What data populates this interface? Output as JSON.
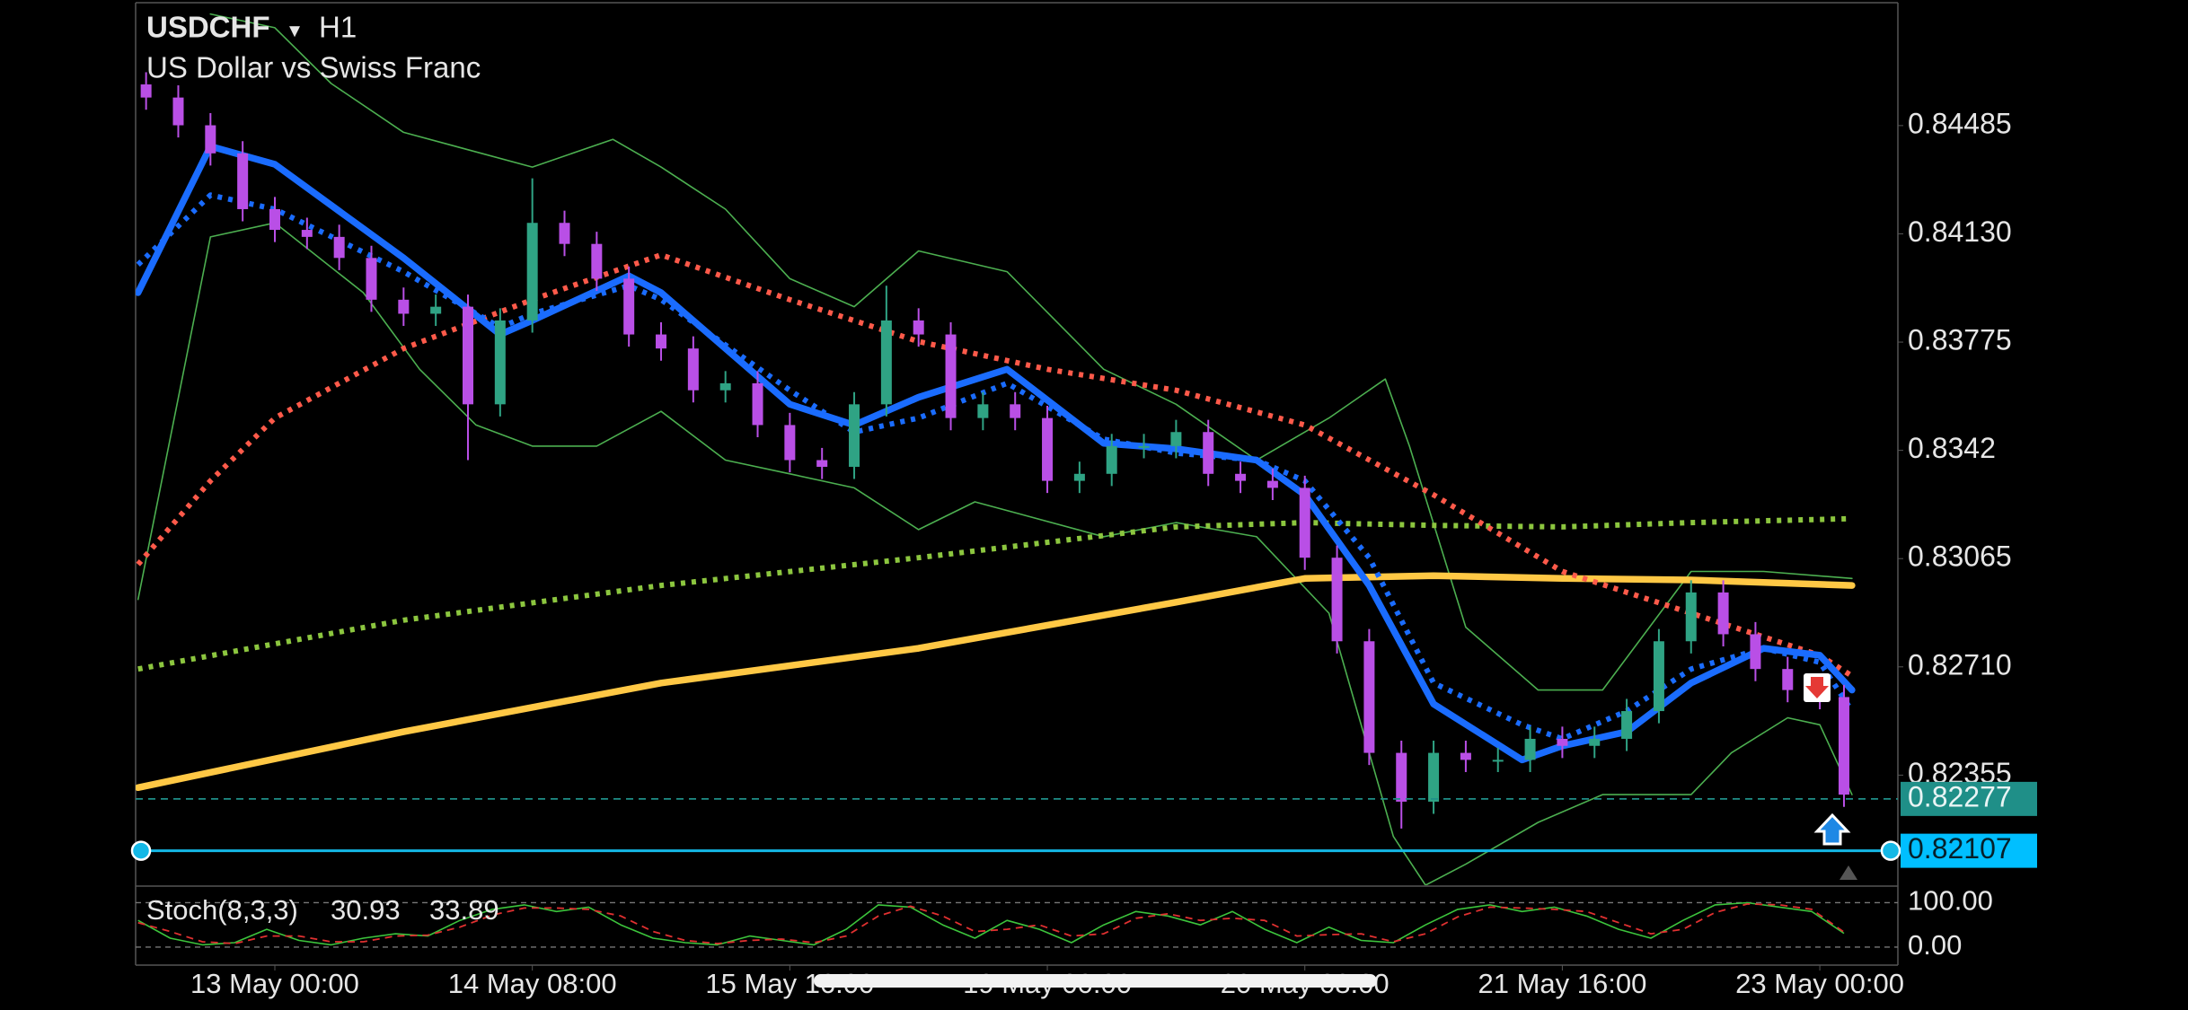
{
  "chart_data": {
    "type": "candlestick",
    "symbol": "USDCHF",
    "symbol_menu": "▾",
    "timeframe": "H1",
    "subtitle": "US Dollar vs Swiss Franc",
    "bull_color": "#2fa384",
    "bear_color": "#b94fe6",
    "x": [
      -16,
      -12,
      -8,
      -4,
      0,
      4,
      8,
      12,
      16,
      20,
      24,
      28,
      32,
      36,
      40,
      44,
      48,
      52,
      56,
      60,
      64,
      68,
      72,
      76,
      80,
      84,
      88,
      92,
      96,
      100,
      104,
      108,
      112,
      116,
      120,
      124,
      128,
      132,
      136,
      140,
      144,
      148,
      152,
      156,
      160,
      164,
      168,
      172,
      176,
      180,
      184,
      188,
      192,
      195
    ],
    "open": [
      0.8462,
      0.84577,
      0.84486,
      0.84394,
      0.84211,
      0.84143,
      0.8412,
      0.84051,
      0.83914,
      0.83868,
      0.83891,
      0.83571,
      0.83846,
      0.84166,
      0.84097,
      0.83983,
      0.838,
      0.83754,
      0.83617,
      0.8364,
      0.83503,
      0.83388,
      0.83366,
      0.83571,
      0.83846,
      0.838,
      0.83526,
      0.83571,
      0.83526,
      0.8332,
      0.83343,
      0.83434,
      0.83434,
      0.8348,
      0.83343,
      0.8332,
      0.83297,
      0.83068,
      0.82794,
      0.82428,
      0.82268,
      0.82428,
      0.82405,
      0.82405,
      0.82474,
      0.82451,
      0.82474,
      0.82565,
      0.82794,
      0.82954,
      0.82817,
      0.82703,
      0.82634,
      0.82611
    ],
    "high": [
      0.8466,
      0.84617,
      0.84526,
      0.84434,
      0.84251,
      0.84183,
      0.8416,
      0.84091,
      0.83954,
      0.83931,
      0.83931,
      0.83886,
      0.84312,
      0.84206,
      0.84137,
      0.84023,
      0.8384,
      0.83794,
      0.8368,
      0.8368,
      0.83543,
      0.83428,
      0.83611,
      0.8396,
      0.83886,
      0.8384,
      0.83611,
      0.83611,
      0.83566,
      0.83383,
      0.83474,
      0.83474,
      0.8352,
      0.8352,
      0.83383,
      0.8336,
      0.83337,
      0.83108,
      0.82834,
      0.82468,
      0.82468,
      0.82468,
      0.82445,
      0.82514,
      0.82514,
      0.82514,
      0.82605,
      0.82834,
      0.82994,
      0.82994,
      0.82857,
      0.82743,
      0.82651,
      0.82651
    ],
    "low": [
      0.84537,
      0.84446,
      0.84354,
      0.84171,
      0.84103,
      0.8408,
      0.84011,
      0.83874,
      0.83828,
      0.83828,
      0.83388,
      0.83531,
      0.83806,
      0.84057,
      0.83943,
      0.8376,
      0.83714,
      0.83577,
      0.83577,
      0.83463,
      0.83348,
      0.83326,
      0.83326,
      0.83531,
      0.8376,
      0.83486,
      0.83486,
      0.83486,
      0.8328,
      0.8328,
      0.83303,
      0.83394,
      0.83394,
      0.83303,
      0.8328,
      0.83257,
      0.83028,
      0.82754,
      0.82388,
      0.8218,
      0.82228,
      0.82365,
      0.82365,
      0.82365,
      0.82411,
      0.82411,
      0.82434,
      0.82525,
      0.82754,
      0.82777,
      0.82663,
      0.82594,
      0.82571,
      0.82251
    ],
    "close": [
      0.84577,
      0.84486,
      0.84394,
      0.84211,
      0.84143,
      0.8412,
      0.84051,
      0.83914,
      0.83868,
      0.83891,
      0.83571,
      0.83846,
      0.84166,
      0.84097,
      0.83983,
      0.838,
      0.83754,
      0.83617,
      0.8364,
      0.83503,
      0.83388,
      0.83366,
      0.83571,
      0.83846,
      0.838,
      0.83526,
      0.83571,
      0.83526,
      0.8332,
      0.83343,
      0.83434,
      0.83434,
      0.8348,
      0.83343,
      0.8332,
      0.83297,
      0.83068,
      0.82794,
      0.82428,
      0.82268,
      0.82428,
      0.82405,
      0.82405,
      0.82474,
      0.82451,
      0.82474,
      0.82565,
      0.82794,
      0.82954,
      0.82817,
      0.82703,
      0.82634,
      0.82611,
      0.82291
    ],
    "lines": [
      {
        "color": "#4caf50",
        "style": "thin",
        "x": [
          -8,
          0,
          7,
          16,
          32,
          42,
          48,
          56,
          64,
          72,
          80,
          91,
          103,
          112,
          122,
          131,
          138,
          141,
          148,
          157,
          165,
          176,
          185,
          196
        ],
        "values": [
          0.84851,
          0.84806,
          0.84623,
          0.84463,
          0.84349,
          0.8444,
          0.84349,
          0.84211,
          0.83983,
          0.83891,
          0.84074,
          0.84006,
          0.83686,
          0.83571,
          0.83388,
          0.83526,
          0.83654,
          0.83434,
          0.8284,
          0.82634,
          0.82634,
          0.83023,
          0.83023,
          0.83
        ]
      },
      {
        "color": "#4caf50",
        "style": "thin",
        "x": [
          -17,
          -8,
          0,
          11,
          18,
          25,
          32,
          40,
          48,
          56,
          64,
          72,
          80,
          87,
          103,
          112,
          122,
          131,
          139,
          143,
          148,
          157,
          165,
          176,
          181,
          188,
          192,
          196
        ],
        "values": [
          0.82931,
          0.8412,
          0.84166,
          0.83937,
          0.83686,
          0.83503,
          0.83434,
          0.83434,
          0.83548,
          0.83388,
          0.83343,
          0.83297,
          0.8316,
          0.83251,
          0.83137,
          0.83183,
          0.83137,
          0.82886,
          0.82154,
          0.81994,
          0.82063,
          0.822,
          0.82291,
          0.82291,
          0.82428,
          0.82543,
          0.8252,
          0.82291
        ]
      },
      {
        "color": "#ffc845",
        "style": "thick",
        "x": [
          -17,
          16,
          48,
          80,
          112,
          128,
          144,
          160,
          176,
          196
        ],
        "values": [
          0.82314,
          0.82497,
          0.82657,
          0.82771,
          0.82922,
          0.83,
          0.83009,
          0.83,
          0.82995,
          0.82977
        ]
      },
      {
        "color": "#8cc63f",
        "style": "dotted",
        "x": [
          -17,
          16,
          48,
          80,
          112,
          128,
          144,
          160,
          176,
          196
        ],
        "values": [
          0.82703,
          0.82863,
          0.82977,
          0.83068,
          0.83169,
          0.83183,
          0.83174,
          0.83169,
          0.83183,
          0.83196
        ]
      },
      {
        "color": "#ff5a4a",
        "style": "dotted",
        "x": [
          -17,
          -8,
          0,
          16,
          32,
          48,
          64,
          80,
          96,
          112,
          128,
          144,
          160,
          176,
          192,
          196
        ],
        "values": [
          0.83046,
          0.8332,
          0.83526,
          0.83754,
          0.83914,
          0.84061,
          0.83914,
          0.83777,
          0.83686,
          0.83617,
          0.83503,
          0.83274,
          0.83023,
          0.82886,
          0.82748,
          0.8268
        ]
      },
      {
        "color": "#1a6cff",
        "style": "dotted",
        "x": [
          -17,
          -8,
          0,
          16,
          28,
          32,
          44,
          48,
          64,
          72,
          80,
          91,
          103,
          112,
          122,
          128,
          136,
          144,
          155,
          160,
          168,
          176,
          185,
          192,
          196
        ],
        "values": [
          0.84029,
          0.84257,
          0.84211,
          0.84006,
          0.83823,
          0.83868,
          0.8396,
          0.83914,
          0.83617,
          0.8348,
          0.83526,
          0.8364,
          0.83457,
          0.83411,
          0.83388,
          0.8332,
          0.83068,
          0.82657,
          0.8252,
          0.82474,
          0.82565,
          0.82703,
          0.82771,
          0.82725,
          0.82565
        ]
      },
      {
        "color": "#1a6cff",
        "style": "thick",
        "x": [
          -17,
          -8,
          0,
          16,
          28,
          32,
          44,
          48,
          64,
          72,
          80,
          91,
          103,
          112,
          122,
          128,
          136,
          144,
          155,
          160,
          168,
          176,
          185,
          192,
          196
        ],
        "values": [
          0.83937,
          0.84417,
          0.84358,
          0.84051,
          0.838,
          0.83846,
          0.83992,
          0.83937,
          0.83571,
          0.83503,
          0.83594,
          0.83686,
          0.83443,
          0.83425,
          0.83388,
          0.83274,
          0.82977,
          0.82588,
          0.82405,
          0.82451,
          0.82497,
          0.82657,
          0.82771,
          0.82748,
          0.82634
        ]
      }
    ],
    "price_lines": [
      {
        "value": 0.82277,
        "color": "#1f8f88",
        "style": "dashed",
        "label_color": "#1f8f88",
        "text_color": "#e8f4f4"
      },
      {
        "value": 0.82107,
        "color": "#14b8e6",
        "style": "solid",
        "label_color": "#00bfff",
        "text_color": "#06202a"
      }
    ],
    "xlim": [
      -17.3,
      201.7
    ],
    "ylim": [
      0.81994,
      0.84888
    ],
    "xticks": [
      {
        "value": 0,
        "label": "13 May 00:00"
      },
      {
        "value": 32,
        "label": "14 May 08:00"
      },
      {
        "value": 64,
        "label": "15 May 16:00"
      },
      {
        "value": 96,
        "label": "19 May 00:00"
      },
      {
        "value": 128,
        "label": "20 May 08:00"
      },
      {
        "value": 160,
        "label": "21 May 16:00"
      },
      {
        "value": 192,
        "label": "23 May 00:00"
      }
    ],
    "yticks": [
      0.84485,
      {
        "value": 0.8413,
        "label": "0.84130"
      },
      0.83775,
      0.8342,
      0.83065,
      {
        "value": 0.8271,
        "label": "0.82710"
      },
      0.82355
    ],
    "oscillator": {
      "title": "Stoch(8,3,3)",
      "main_value": 30.93,
      "signal_value": 33.89,
      "ylim": [
        -40.6,
        131.25
      ],
      "yticks": [
        {
          "value": 100,
          "label": "100.00"
        },
        {
          "value": 0,
          "label": "0.00"
        }
      ],
      "x": [
        -17,
        -13,
        -9,
        -5,
        -1,
        3,
        7,
        11,
        15,
        19,
        23,
        27,
        31,
        35,
        39,
        43,
        47,
        51,
        55,
        59,
        63,
        67,
        71,
        75,
        79,
        83,
        87,
        91,
        95,
        99,
        103,
        107,
        111,
        115,
        119,
        123,
        127,
        131,
        135,
        139,
        143,
        147,
        151,
        155,
        159,
        163,
        167,
        171,
        175,
        179,
        183,
        187,
        191,
        195
      ],
      "series": [
        {
          "color": "#3cc43c",
          "style": "thin",
          "values": [
            60,
            20,
            5,
            10,
            40,
            15,
            5,
            20,
            30,
            25,
            60,
            85,
            95,
            80,
            90,
            50,
            20,
            10,
            5,
            25,
            15,
            5,
            40,
            95,
            90,
            50,
            20,
            60,
            40,
            10,
            50,
            80,
            70,
            50,
            80,
            40,
            10,
            45,
            15,
            10,
            50,
            85,
            95,
            80,
            90,
            70,
            40,
            20,
            60,
            95,
            100,
            90,
            80,
            30.93
          ]
        },
        {
          "color": "#e03030",
          "style": "dashed",
          "values": [
            55,
            35,
            12,
            8,
            25,
            25,
            12,
            12,
            25,
            27,
            45,
            72,
            88,
            88,
            85,
            70,
            35,
            15,
            8,
            15,
            18,
            10,
            25,
            70,
            92,
            70,
            35,
            40,
            50,
            25,
            30,
            65,
            75,
            60,
            65,
            60,
            25,
            28,
            30,
            12,
            30,
            68,
            90,
            88,
            85,
            80,
            55,
            30,
            40,
            78,
            97,
            95,
            85,
            33.89
          ]
        }
      ]
    }
  }
}
